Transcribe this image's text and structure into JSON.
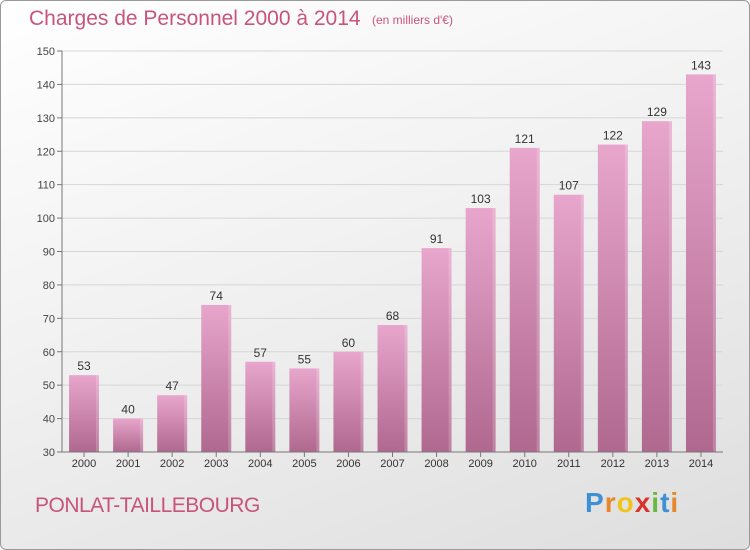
{
  "title": "Charges de Personnel 2000 à 2014",
  "subtitle": "(en milliers d'€)",
  "commune": "PONLAT-TAILLEBOURG",
  "logo": {
    "letters": [
      "P",
      "r",
      "o",
      "x",
      "i",
      "t",
      "i"
    ],
    "colors": [
      "#3d8fd6",
      "#e8862a",
      "#f0c419",
      "#d9342b",
      "#6ab743",
      "#3d8fd6",
      "#e8862a"
    ]
  },
  "colors": {
    "accent": "#c8547a",
    "bar_top": "#e8a6cc",
    "bar_bottom": "#b0688f"
  },
  "chart_data": {
    "type": "bar",
    "categories": [
      "2000",
      "2001",
      "2002",
      "2003",
      "2004",
      "2005",
      "2006",
      "2007",
      "2008",
      "2009",
      "2010",
      "2011",
      "2012",
      "2013",
      "2014"
    ],
    "values": [
      53,
      40,
      47,
      74,
      57,
      55,
      60,
      68,
      91,
      103,
      121,
      107,
      122,
      129,
      143
    ],
    "ylim": [
      30,
      150
    ],
    "yticks": [
      30,
      40,
      50,
      60,
      70,
      80,
      90,
      100,
      110,
      120,
      130,
      140,
      150
    ],
    "grid": true,
    "legend": "none"
  }
}
